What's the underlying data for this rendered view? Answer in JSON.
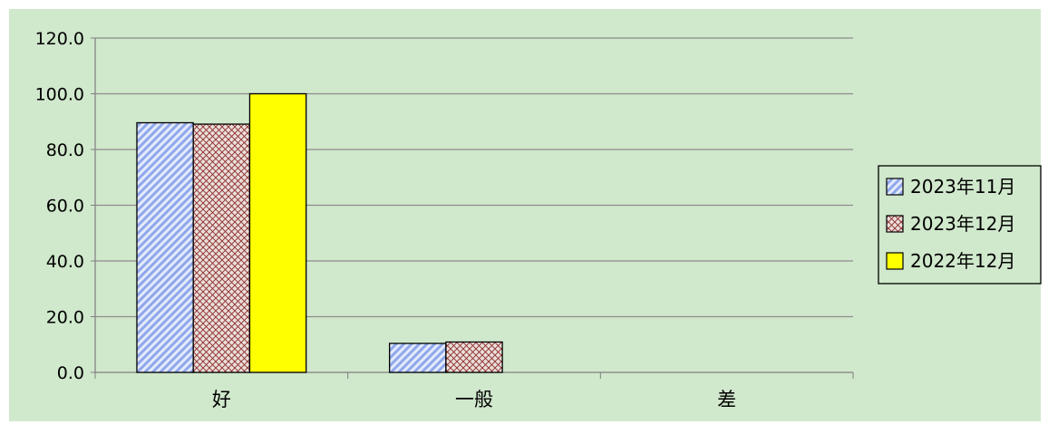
{
  "chart_data": {
    "type": "bar",
    "title": "",
    "xlabel": "",
    "ylabel": "",
    "categories": [
      "好",
      "一般",
      "差"
    ],
    "series": [
      {
        "name": "2023年11月",
        "values": [
          89.6,
          10.4,
          0
        ],
        "pattern": "diagonal",
        "color": "#a9bff0"
      },
      {
        "name": "2023年12月",
        "values": [
          89.1,
          10.9,
          0
        ],
        "pattern": "crosshatch",
        "color": "#c7b4ae"
      },
      {
        "name": "2022年12月",
        "values": [
          100.0,
          0,
          0
        ],
        "pattern": "solid",
        "color": "#ffff00"
      }
    ],
    "ylim": [
      0,
      120
    ],
    "yticks": [
      "0.0",
      "20.0",
      "40.0",
      "60.0",
      "80.0",
      "100.0",
      "120.0"
    ],
    "grid": true,
    "legend": "right",
    "background": "#d0e8cc",
    "gridline_color": "#8c8c8c"
  }
}
